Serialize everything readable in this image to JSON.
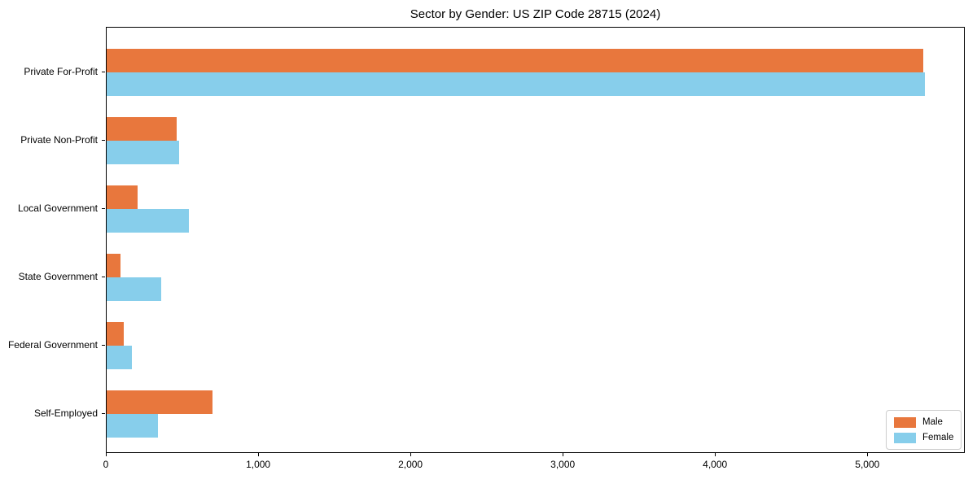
{
  "figure": {
    "title": "Sector by Gender: US ZIP Code 28715 (2024)"
  },
  "chart_data": {
    "type": "bar",
    "orientation": "horizontal",
    "title": "Sector by Gender: US ZIP Code 28715 (2024)",
    "categories": [
      "Private For-Profit",
      "Private Non-Profit",
      "Local Government",
      "State Government",
      "Federal Government",
      "Self-Employed"
    ],
    "series": [
      {
        "name": "Male",
        "color": "#e8773d",
        "values": [
          5360,
          460,
          205,
          90,
          110,
          695
        ]
      },
      {
        "name": "Female",
        "color": "#87ceeb",
        "values": [
          5375,
          475,
          540,
          360,
          165,
          335
        ]
      }
    ],
    "xlabel": "",
    "ylabel": "",
    "xlim": [
      0,
      5640
    ],
    "xticks": [
      0,
      1000,
      2000,
      3000,
      4000,
      5000
    ],
    "xtick_labels": [
      "0",
      "1,000",
      "2,000",
      "3,000",
      "4,000",
      "5,000"
    ],
    "grid": false,
    "legend": {
      "position": "lower right",
      "entries": [
        {
          "label": "Male",
          "color": "#e8773d"
        },
        {
          "label": "Female",
          "color": "#87ceeb"
        }
      ]
    }
  }
}
